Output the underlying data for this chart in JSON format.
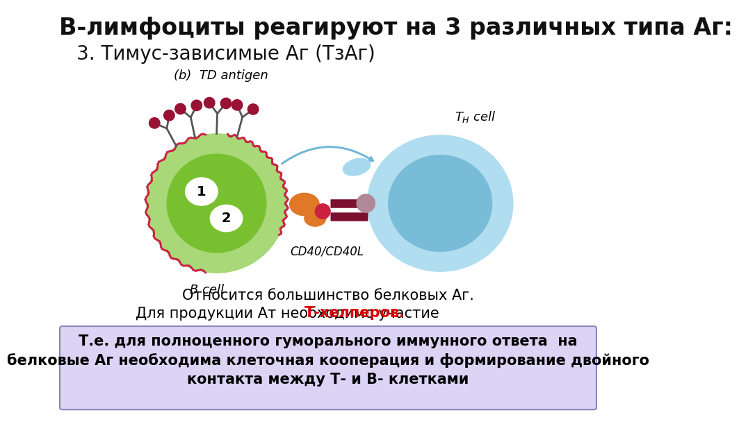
{
  "title": "В-лимфоциты реагируют на 3 различных типа Аг:",
  "subtitle": "3. Тимус-зависимые Аг (ТзАг)",
  "td_antigen_label": "(b)  TD antigen",
  "b_cell_label": "B cell",
  "cd_label": "CD40/CD40L",
  "label1": "1",
  "label2": "2",
  "text1": "Относится большинство белковых Аг.",
  "text2_part1": "Для продукции Ат необходимо участие ",
  "text2_part2": "Т-хелперов.",
  "box_text_line1": "Т.е. для полноценного гуморального иммунного ответа  на",
  "box_text_line2": "белковые Аг необходима клеточная кооперация и формирование двойного",
  "box_text_line3": "контакта между Т- и В- клетками",
  "bg_color": "#ffffff",
  "title_color": "#111111",
  "title_fontsize": 24,
  "subtitle_fontsize": 20,
  "b_cell_outer_color": "#a8d878",
  "b_cell_inner_color": "#78c030",
  "th_cell_outer_color": "#b0ddf0",
  "th_cell_inner_color": "#78bcd8",
  "nucleus_color": "#ffffff",
  "box_bg_color": "#dcd4f5",
  "box_border_color": "#8888bb",
  "text_color": "#000000",
  "highlight_color": "#dd0000",
  "receptor_color": "#555555",
  "blob_color": "#991133",
  "orange_color": "#e07828",
  "darkred_color": "#7b1030",
  "pink_color": "#c87080",
  "wavy_color": "#cc2244",
  "arrow_color": "#70b8d8"
}
